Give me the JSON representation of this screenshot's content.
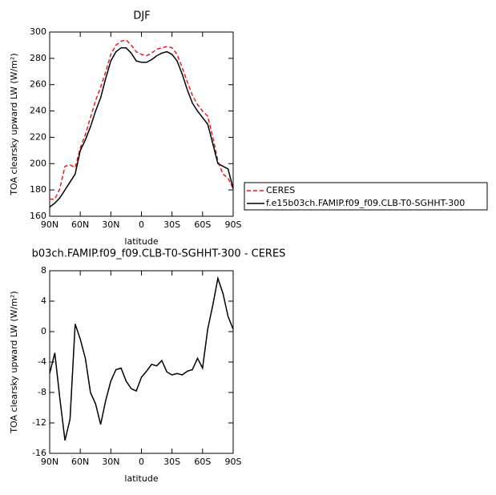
{
  "chart_data": [
    {
      "type": "line",
      "title": "DJF",
      "y_label": "TOA clearsky upward LW (W/m²)",
      "x_label": "latitude",
      "x": [
        90,
        85,
        80,
        75,
        70,
        65,
        60,
        55,
        50,
        45,
        40,
        35,
        30,
        25,
        20,
        15,
        10,
        5,
        0,
        -5,
        -10,
        -15,
        -20,
        -25,
        -30,
        -35,
        -40,
        -45,
        -50,
        -55,
        -60,
        -65,
        -70,
        -75,
        -80,
        -85,
        -90
      ],
      "xlim": [
        90,
        -90
      ],
      "xticks": [
        {
          "value": 90,
          "label": "90N"
        },
        {
          "value": 60,
          "label": "60N"
        },
        {
          "value": 30,
          "label": "30N"
        },
        0,
        {
          "value": -30,
          "label": "30S"
        },
        {
          "value": -60,
          "label": "60S"
        },
        {
          "value": -90,
          "label": "90S"
        }
      ],
      "ylim": [
        160,
        300
      ],
      "yticks": [
        160,
        180,
        200,
        220,
        240,
        260,
        280,
        300
      ],
      "legend": "right",
      "series": [
        {
          "name": "CERES",
          "color": "#e8191e",
          "dash": true,
          "values": [
            173,
            173,
            181,
            198,
            199,
            197,
            212,
            222,
            235,
            248,
            258,
            270,
            283,
            290,
            293,
            294,
            290,
            285,
            283,
            282,
            284,
            287,
            288,
            289,
            288,
            283,
            273,
            262,
            252,
            245,
            240,
            236,
            220,
            202,
            192,
            189,
            181
          ]
        },
        {
          "name": "f.e15b03ch.FAMIP.f09_f09.CLB-T0-SGHHT-300",
          "color": "#000000",
          "dash": false,
          "values": [
            167,
            170,
            174,
            180,
            186,
            192,
            210,
            218,
            228,
            240,
            250,
            265,
            278,
            285,
            288,
            288,
            284,
            278,
            277,
            277,
            279,
            282,
            284,
            285,
            283,
            278,
            268,
            256,
            246,
            240,
            235,
            230,
            215,
            200,
            198,
            196,
            181
          ]
        }
      ]
    },
    {
      "type": "line",
      "title": "b03ch.FAMIP.f09_f09.CLB-T0-SGHHT-300 - CERES",
      "y_label": "TOA clearsky upward LW (W/m²)",
      "x_label": "latitude",
      "x": [
        90,
        85,
        80,
        75,
        70,
        65,
        60,
        55,
        50,
        45,
        40,
        35,
        30,
        25,
        20,
        15,
        10,
        5,
        0,
        -5,
        -10,
        -15,
        -20,
        -25,
        -30,
        -35,
        -40,
        -45,
        -50,
        -55,
        -60,
        -65,
        -70,
        -75,
        -80,
        -85,
        -90
      ],
      "xlim": [
        90,
        -90
      ],
      "xticks": [
        {
          "value": 90,
          "label": "90N"
        },
        {
          "value": 60,
          "label": "60N"
        },
        {
          "value": 30,
          "label": "30N"
        },
        0,
        {
          "value": -30,
          "label": "30S"
        },
        {
          "value": -60,
          "label": "60S"
        },
        {
          "value": -90,
          "label": "90S"
        }
      ],
      "ylim": [
        -16,
        8
      ],
      "yticks": [
        -16,
        -12,
        -8,
        -4,
        0,
        4,
        8
      ],
      "color": "#000000",
      "values": [
        -5.5,
        -2.8,
        -8.8,
        -14.3,
        -11.5,
        1.0,
        -1.0,
        -3.5,
        -8,
        -9.5,
        -12.2,
        -9,
        -6.5,
        -5,
        -4.8,
        -6.5,
        -7.5,
        -7.8,
        -6,
        -5.2,
        -4.3,
        -4.5,
        -3.8,
        -5.3,
        -5.7,
        -5.5,
        -5.7,
        -5.2,
        -5,
        -3.5,
        -4.8,
        0.3,
        3.5,
        7,
        5,
        2,
        0.3
      ]
    }
  ]
}
